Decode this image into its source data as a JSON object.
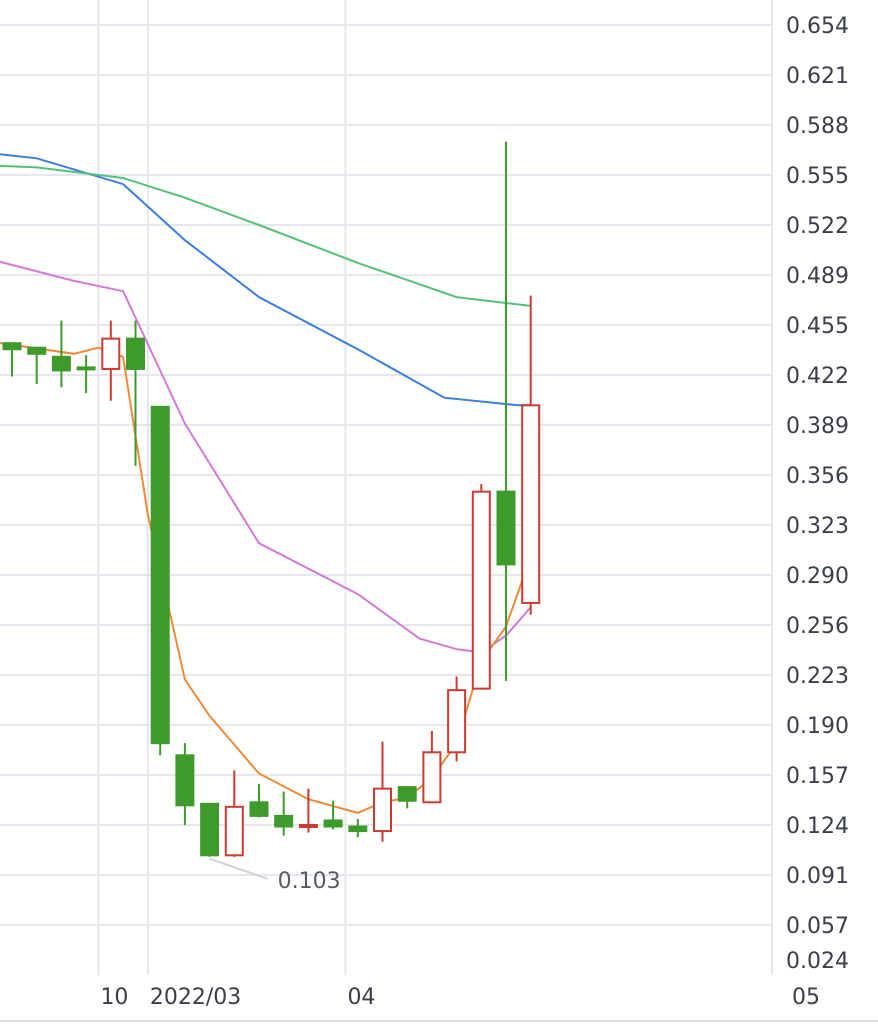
{
  "chart_data": {
    "type": "candlestick",
    "y_axis": {
      "ticks": [
        "0.654",
        "0.621",
        "0.588",
        "0.555",
        "0.522",
        "0.489",
        "0.455",
        "0.422",
        "0.389",
        "0.356",
        "0.323",
        "0.290",
        "0.256",
        "0.223",
        "0.190",
        "0.157",
        "0.124",
        "0.091",
        "0.057",
        "0.024"
      ],
      "range": [
        0.024,
        0.654
      ],
      "position": "right"
    },
    "x_axis": {
      "ticks": [
        {
          "label": "10",
          "at": 3.5
        },
        {
          "label": "2022/03",
          "at": 5.5
        },
        {
          "label": "04",
          "at": 13.5
        },
        {
          "label": "05",
          "at": 31.5
        }
      ],
      "range": [
        0,
        30.8
      ]
    },
    "grid": true,
    "candles": [
      {
        "i": 0,
        "open": 0.443,
        "high": 0.443,
        "low": 0.421,
        "close": 0.439,
        "color": "green"
      },
      {
        "i": 1,
        "open": 0.44,
        "high": 0.44,
        "low": 0.416,
        "close": 0.436,
        "color": "green"
      },
      {
        "i": 2,
        "open": 0.434,
        "high": 0.458,
        "low": 0.414,
        "close": 0.425,
        "color": "green"
      },
      {
        "i": 3,
        "open": 0.427,
        "high": 0.435,
        "low": 0.41,
        "close": 0.426,
        "color": "green"
      },
      {
        "i": 4,
        "open": 0.426,
        "high": 0.458,
        "low": 0.405,
        "close": 0.446,
        "color": "red"
      },
      {
        "i": 5,
        "open": 0.446,
        "high": 0.458,
        "low": 0.362,
        "close": 0.426,
        "color": "green"
      },
      {
        "i": 6,
        "open": 0.401,
        "high": 0.401,
        "low": 0.17,
        "close": 0.178,
        "color": "green"
      },
      {
        "i": 7,
        "open": 0.17,
        "high": 0.178,
        "low": 0.124,
        "close": 0.137,
        "color": "green"
      },
      {
        "i": 8,
        "open": 0.138,
        "high": 0.138,
        "low": 0.103,
        "close": 0.104,
        "color": "green"
      },
      {
        "i": 9,
        "open": 0.104,
        "high": 0.16,
        "low": 0.103,
        "close": 0.136,
        "color": "red"
      },
      {
        "i": 10,
        "open": 0.139,
        "high": 0.151,
        "low": 0.129,
        "close": 0.13,
        "color": "green"
      },
      {
        "i": 11,
        "open": 0.13,
        "high": 0.146,
        "low": 0.117,
        "close": 0.123,
        "color": "green"
      },
      {
        "i": 12,
        "open": 0.124,
        "high": 0.148,
        "low": 0.119,
        "close": 0.124,
        "color": "red"
      },
      {
        "i": 13,
        "open": 0.127,
        "high": 0.14,
        "low": 0.121,
        "close": 0.123,
        "color": "green"
      },
      {
        "i": 14,
        "open": 0.123,
        "high": 0.128,
        "low": 0.116,
        "close": 0.12,
        "color": "green"
      },
      {
        "i": 15,
        "open": 0.12,
        "high": 0.179,
        "low": 0.113,
        "close": 0.148,
        "color": "red"
      },
      {
        "i": 16,
        "open": 0.149,
        "high": 0.149,
        "low": 0.135,
        "close": 0.14,
        "color": "green"
      },
      {
        "i": 17,
        "open": 0.139,
        "high": 0.186,
        "low": 0.139,
        "close": 0.172,
        "color": "red"
      },
      {
        "i": 18,
        "open": 0.172,
        "high": 0.222,
        "low": 0.166,
        "close": 0.213,
        "color": "red"
      },
      {
        "i": 19,
        "open": 0.214,
        "high": 0.35,
        "low": 0.214,
        "close": 0.345,
        "color": "red"
      },
      {
        "i": 20,
        "open": 0.345,
        "high": 0.577,
        "low": 0.219,
        "close": 0.297,
        "color": "green"
      },
      {
        "i": 21,
        "open": 0.271,
        "high": 0.475,
        "low": 0.263,
        "close": 0.402,
        "color": "red"
      }
    ],
    "moving_averages": [
      {
        "color": "#3a7ee0",
        "points": [
          [
            -3.4,
            0.574
          ],
          [
            1,
            0.566
          ],
          [
            4.5,
            0.549
          ],
          [
            7,
            0.512
          ],
          [
            10,
            0.474
          ],
          [
            14,
            0.439
          ],
          [
            17.5,
            0.407
          ],
          [
            20.5,
            0.402
          ],
          [
            21,
            0.402
          ]
        ]
      },
      {
        "color": "#55c07a",
        "points": [
          [
            -3.4,
            0.563
          ],
          [
            1,
            0.56
          ],
          [
            4.5,
            0.553
          ],
          [
            7,
            0.54
          ],
          [
            10,
            0.522
          ],
          [
            14,
            0.497
          ],
          [
            18,
            0.474
          ],
          [
            21,
            0.468
          ]
        ]
      },
      {
        "color": "#d27ad6",
        "points": [
          [
            -3.4,
            0.51
          ],
          [
            2.5,
            0.485
          ],
          [
            4.5,
            0.478
          ],
          [
            7,
            0.39
          ],
          [
            10,
            0.311
          ],
          [
            14,
            0.277
          ],
          [
            16.5,
            0.247
          ],
          [
            18,
            0.24
          ],
          [
            19,
            0.238
          ],
          [
            20,
            0.249
          ],
          [
            21,
            0.268
          ]
        ]
      },
      {
        "color": "#ef8a3a",
        "points": [
          [
            -3.4,
            0.45
          ],
          [
            2.5,
            0.436
          ],
          [
            3.5,
            0.44
          ],
          [
            4.5,
            0.434
          ],
          [
            5.5,
            0.33
          ],
          [
            7,
            0.22
          ],
          [
            8,
            0.196
          ],
          [
            10,
            0.158
          ],
          [
            12,
            0.141
          ],
          [
            14,
            0.132
          ],
          [
            15,
            0.139
          ],
          [
            16,
            0.142
          ],
          [
            17,
            0.155
          ],
          [
            18,
            0.178
          ],
          [
            19,
            0.232
          ],
          [
            20,
            0.255
          ],
          [
            21,
            0.302
          ]
        ]
      }
    ],
    "annotations": [
      {
        "text": "0.103",
        "at_index": 8,
        "value": 0.103
      }
    ]
  }
}
